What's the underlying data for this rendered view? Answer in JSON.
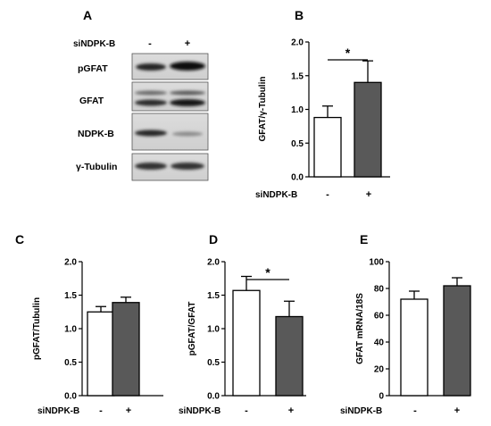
{
  "figure": {
    "panels": [
      "A",
      "B",
      "C",
      "D",
      "E"
    ],
    "condition_label": "siNDPK-B",
    "condition_levels": [
      "-",
      "+"
    ],
    "significance_mark": "*",
    "blot": {
      "rows": [
        {
          "label": "pGFAT",
          "name": "blot-row-pgfat"
        },
        {
          "label": "GFAT",
          "name": "blot-row-gfat"
        },
        {
          "label": "NDPK-B",
          "name": "blot-row-ndpkb"
        },
        {
          "label": "γ-Tubulin",
          "name": "blot-row-tubulin"
        }
      ]
    }
  },
  "colors": {
    "bar_control": "#ffffff",
    "bar_treated": "#595959",
    "stroke": "#000000"
  },
  "chart_data": [
    {
      "panel": "B",
      "type": "bar",
      "categories": [
        "-",
        "+"
      ],
      "values": [
        0.88,
        1.4
      ],
      "errors": [
        0.17,
        0.32
      ],
      "ylabel": "GFAT/γ-Tubulin",
      "xlabel": "siNDPK-B",
      "ylim": [
        0,
        2.0
      ],
      "yticks": [
        "0.0",
        "0.5",
        "1.0",
        "1.5",
        "2.0"
      ],
      "significant": true,
      "grid": false
    },
    {
      "panel": "C",
      "type": "bar",
      "categories": [
        "-",
        "+"
      ],
      "values": [
        1.25,
        1.39
      ],
      "errors": [
        0.08,
        0.08
      ],
      "ylabel": "pGFAT/Tubulin",
      "xlabel": "siNDPK-B",
      "ylim": [
        0,
        2.0
      ],
      "yticks": [
        "0.0",
        "0.5",
        "1.0",
        "1.5",
        "2.0"
      ],
      "significant": false,
      "grid": false
    },
    {
      "panel": "D",
      "type": "bar",
      "categories": [
        "-",
        "+"
      ],
      "values": [
        1.57,
        1.18
      ],
      "errors": [
        0.21,
        0.23
      ],
      "ylabel": "pGFAT/GFAT",
      "xlabel": "siNDPK-B",
      "ylim": [
        0,
        2.0
      ],
      "yticks": [
        "0.0",
        "0.5",
        "1.0",
        "1.5",
        "2.0"
      ],
      "significant": true,
      "grid": false
    },
    {
      "panel": "E",
      "type": "bar",
      "categories": [
        "-",
        "+"
      ],
      "values": [
        72,
        82
      ],
      "errors": [
        6,
        6
      ],
      "ylabel": "GFAT mRNA/18S",
      "xlabel": "siNDPK-B",
      "ylim": [
        0,
        100
      ],
      "yticks": [
        "0",
        "20",
        "40",
        "60",
        "80",
        "100"
      ],
      "significant": false,
      "grid": false
    }
  ]
}
